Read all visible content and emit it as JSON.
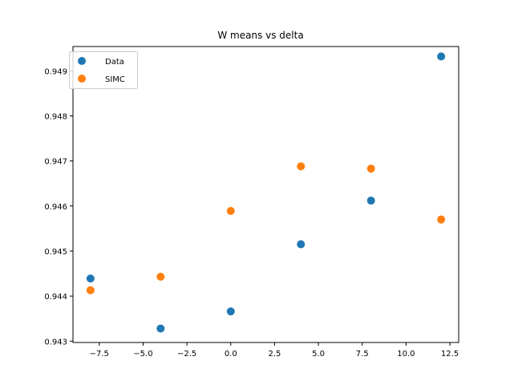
{
  "chart_data": {
    "type": "scatter",
    "title": "W means vs delta",
    "xlabel": "",
    "ylabel": "",
    "xlim": [
      -9.0,
      13.0
    ],
    "ylim": [
      0.94297,
      0.94954
    ],
    "xticks": [
      -7.5,
      -5.0,
      -2.5,
      0.0,
      2.5,
      5.0,
      7.5,
      10.0,
      12.5
    ],
    "xtick_labels": [
      "−7.5",
      "−5.0",
      "−2.5",
      "0.0",
      "2.5",
      "5.0",
      "7.5",
      "10.0",
      "12.5"
    ],
    "yticks": [
      0.943,
      0.944,
      0.945,
      0.946,
      0.947,
      0.948,
      0.949
    ],
    "ytick_labels": [
      "0.943",
      "0.944",
      "0.945",
      "0.946",
      "0.947",
      "0.948",
      "0.949"
    ],
    "grid": false,
    "legend_position": "upper-left",
    "series": [
      {
        "name": "Data",
        "color": "#1f77b4",
        "points": [
          {
            "x": -8,
            "y": 0.94439
          },
          {
            "x": -4,
            "y": 0.94328
          },
          {
            "x": 0,
            "y": 0.94366
          },
          {
            "x": 4,
            "y": 0.94515
          },
          {
            "x": 8,
            "y": 0.94612
          },
          {
            "x": 12,
            "y": 0.94932
          }
        ]
      },
      {
        "name": "SIMC",
        "color": "#ff7f0e",
        "points": [
          {
            "x": -8,
            "y": 0.94413
          },
          {
            "x": -4,
            "y": 0.94443
          },
          {
            "x": 0,
            "y": 0.94589
          },
          {
            "x": 4,
            "y": 0.94688
          },
          {
            "x": 8,
            "y": 0.94683
          },
          {
            "x": 12,
            "y": 0.9457
          }
        ]
      }
    ]
  }
}
